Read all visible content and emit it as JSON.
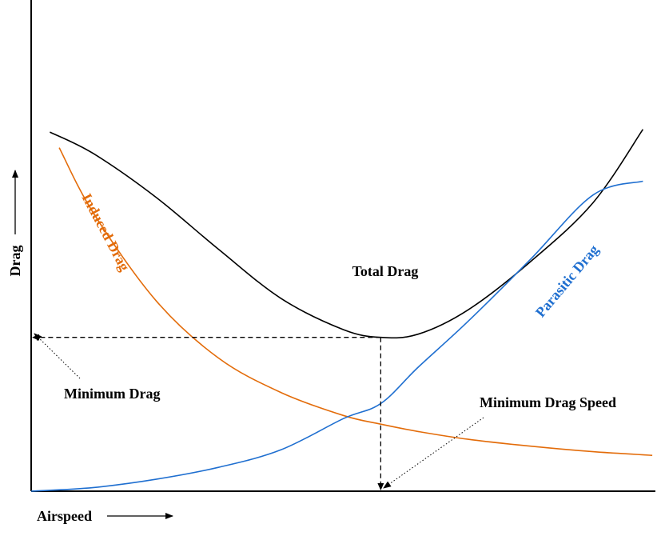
{
  "chart_data": {
    "type": "line",
    "title": "",
    "xlabel": "Airspeed",
    "ylabel": "Drag",
    "xlim": [
      0,
      100
    ],
    "ylim": [
      0,
      100
    ],
    "grid": false,
    "legend": "none",
    "series": [
      {
        "name": "Total Drag",
        "color": "#000000",
        "x": [
          3,
          10,
          20,
          30,
          40,
          50,
          56,
          62,
          70,
          80,
          90,
          98
        ],
        "y": [
          78.2,
          73.5,
          64.0,
          52.7,
          42.0,
          35.2,
          33.5,
          34.2,
          39.5,
          50.0,
          62.8,
          78.8
        ]
      },
      {
        "name": "Induced Drag",
        "color": "#e36c0a",
        "x": [
          4.5,
          10,
          20,
          30,
          40,
          50,
          56,
          62,
          70,
          80,
          90,
          99.5
        ],
        "y": [
          74.8,
          60.5,
          41.5,
          29.0,
          21.5,
          16.5,
          14.6,
          13.0,
          11.3,
          9.8,
          8.6,
          7.8
        ]
      },
      {
        "name": "Parasitic Drag",
        "color": "#1f6fd0",
        "x": [
          0,
          10,
          20,
          30,
          40,
          50,
          56,
          62,
          70,
          80,
          90,
          98
        ],
        "y": [
          0,
          0.8,
          2.6,
          5.2,
          9.0,
          15.8,
          19.1,
          27.0,
          37.0,
          50.5,
          64.5,
          67.5
        ]
      }
    ],
    "minimum_drag": {
      "x": 56,
      "y": 33.5
    },
    "annotations": {
      "minimum_drag": "Minimum Drag",
      "minimum_drag_speed": "Minimum Drag Speed"
    }
  }
}
